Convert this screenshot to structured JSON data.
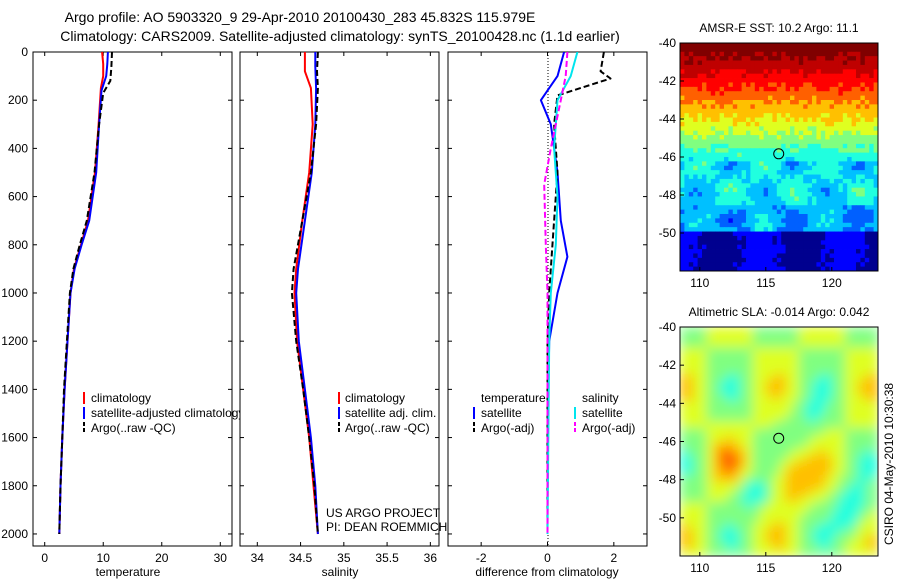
{
  "header": {
    "title_line1": "Argo profile: AO 5903320_9 29-Apr-2010 20100430_283 45.832S 115.979E",
    "title_line2": "Climatology: CARS2009. Satellite-adjusted climatology: synTS_20100428.nc (1.1d earlier)"
  },
  "stamp": "CSIRO 04-May-2010 10:30:38",
  "credits": {
    "line1": "US ARGO PROJECT",
    "line2": "PI: DEAN ROEMMICH"
  },
  "colors": {
    "climatology": "#ff0000",
    "satellite": "#0000ff",
    "argo": "#000000",
    "salinity_satellite": "#00e5ee",
    "salinity_argo": "#ff00ff"
  },
  "chart_data": [
    {
      "type": "line",
      "id": "temperature",
      "xlabel": "temperature",
      "ylabel": "",
      "xlim": [
        -2,
        32
      ],
      "ylim": [
        2050,
        0
      ],
      "xticks": [
        0,
        10,
        20,
        30
      ],
      "yticks": [
        0,
        200,
        400,
        600,
        800,
        1000,
        1200,
        1400,
        1600,
        1800,
        2000
      ],
      "legend": [
        "climatology",
        "satellite-adjusted climatology",
        "Argo(..raw -QC)"
      ],
      "series": [
        {
          "name": "climatology",
          "color": "#ff0000",
          "dash": false,
          "points": [
            [
              9.8,
              0
            ],
            [
              10.0,
              50
            ],
            [
              10.0,
              100
            ],
            [
              9.6,
              150
            ],
            [
              9.2,
              300
            ],
            [
              8.6,
              500
            ],
            [
              7.4,
              700
            ],
            [
              6.2,
              800
            ],
            [
              5.0,
              900
            ],
            [
              4.4,
              1000
            ],
            [
              3.9,
              1200
            ],
            [
              3.4,
              1400
            ],
            [
              3.0,
              1600
            ],
            [
              2.7,
              1800
            ],
            [
              2.5,
              2000
            ]
          ]
        },
        {
          "name": "satellite-adjusted climatology",
          "color": "#0000ff",
          "dash": false,
          "points": [
            [
              10.8,
              0
            ],
            [
              10.7,
              50
            ],
            [
              10.5,
              100
            ],
            [
              9.7,
              160
            ],
            [
              9.3,
              300
            ],
            [
              8.8,
              500
            ],
            [
              7.6,
              700
            ],
            [
              6.3,
              800
            ],
            [
              5.1,
              900
            ],
            [
              4.4,
              1000
            ],
            [
              3.9,
              1200
            ],
            [
              3.4,
              1400
            ],
            [
              3.0,
              1600
            ],
            [
              2.7,
              1800
            ],
            [
              2.5,
              2000
            ]
          ]
        },
        {
          "name": "Argo(..raw -QC)",
          "color": "#000000",
          "dash": true,
          "points": [
            [
              11.5,
              0
            ],
            [
              11.4,
              60
            ],
            [
              11.2,
              120
            ],
            [
              10.0,
              170
            ],
            [
              9.3,
              300
            ],
            [
              8.5,
              500
            ],
            [
              7.2,
              700
            ],
            [
              6.0,
              800
            ],
            [
              4.9,
              900
            ],
            [
              4.3,
              1000
            ],
            [
              3.8,
              1200
            ],
            [
              3.3,
              1400
            ],
            [
              3.0,
              1600
            ],
            [
              2.7,
              1800
            ],
            [
              2.5,
              2000
            ]
          ]
        }
      ]
    },
    {
      "type": "line",
      "id": "salinity",
      "xlabel": "salinity",
      "ylabel": "",
      "xlim": [
        33.8,
        36.1
      ],
      "ylim": [
        2050,
        0
      ],
      "xticks": [
        34,
        34.5,
        35,
        35.5,
        36
      ],
      "yticks": [
        0,
        200,
        400,
        600,
        800,
        1000,
        1200,
        1400,
        1600,
        1800,
        2000
      ],
      "legend": [
        "climatology",
        "satellite adj. clim.",
        "Argo(..raw -QC)"
      ],
      "series": [
        {
          "name": "climatology",
          "color": "#ff0000",
          "dash": false,
          "points": [
            [
              34.55,
              0
            ],
            [
              34.55,
              80
            ],
            [
              34.62,
              150
            ],
            [
              34.64,
              300
            ],
            [
              34.6,
              500
            ],
            [
              34.52,
              700
            ],
            [
              34.45,
              900
            ],
            [
              34.43,
              1000
            ],
            [
              34.46,
              1200
            ],
            [
              34.53,
              1400
            ],
            [
              34.6,
              1600
            ],
            [
              34.65,
              1800
            ],
            [
              34.7,
              2000
            ]
          ]
        },
        {
          "name": "satellite adj. clim.",
          "color": "#0000ff",
          "dash": false,
          "points": [
            [
              34.67,
              0
            ],
            [
              34.67,
              60
            ],
            [
              34.68,
              150
            ],
            [
              34.67,
              300
            ],
            [
              34.63,
              500
            ],
            [
              34.55,
              700
            ],
            [
              34.47,
              900
            ],
            [
              34.45,
              1000
            ],
            [
              34.48,
              1200
            ],
            [
              34.55,
              1400
            ],
            [
              34.62,
              1600
            ],
            [
              34.67,
              1800
            ],
            [
              34.7,
              2000
            ]
          ]
        },
        {
          "name": "Argo(..raw -QC)",
          "color": "#000000",
          "dash": true,
          "points": [
            [
              34.7,
              0
            ],
            [
              34.69,
              80
            ],
            [
              34.7,
              150
            ],
            [
              34.68,
              300
            ],
            [
              34.62,
              500
            ],
            [
              34.52,
              700
            ],
            [
              34.42,
              900
            ],
            [
              34.4,
              1000
            ],
            [
              34.45,
              1200
            ],
            [
              34.53,
              1400
            ],
            [
              34.6,
              1600
            ],
            [
              34.66,
              1800
            ],
            [
              34.7,
              2000
            ]
          ]
        }
      ]
    },
    {
      "type": "line",
      "id": "difference",
      "xlabel": "difference from climatology",
      "ylabel": "",
      "xlim": [
        -3,
        3
      ],
      "ylim": [
        2050,
        0
      ],
      "xticks": [
        -2,
        0,
        2
      ],
      "yticks": [
        0,
        200,
        400,
        600,
        800,
        1000,
        1200,
        1400,
        1600,
        1800,
        2000
      ],
      "legend_titles": [
        "temperature",
        "salinity"
      ],
      "legend": [
        "satellite",
        "Argo(-adj)",
        "satellite",
        "Argo(-adj)"
      ],
      "series": [
        {
          "name": "temperature satellite",
          "color": "#0000ff",
          "dash": false,
          "points": [
            [
              0.5,
              0
            ],
            [
              0.3,
              100
            ],
            [
              0.05,
              150
            ],
            [
              -0.2,
              200
            ],
            [
              0.1,
              300
            ],
            [
              0.3,
              500
            ],
            [
              0.4,
              700
            ],
            [
              0.6,
              850
            ],
            [
              0.3,
              1000
            ],
            [
              0.05,
              1200
            ],
            [
              0.0,
              1600
            ],
            [
              0.0,
              2000
            ]
          ]
        },
        {
          "name": "temperature Argo(-adj)",
          "color": "#000000",
          "dash": true,
          "points": [
            [
              1.7,
              0
            ],
            [
              1.6,
              80
            ],
            [
              1.9,
              110
            ],
            [
              0.3,
              180
            ],
            [
              0.2,
              300
            ],
            [
              0.3,
              500
            ],
            [
              0.2,
              700
            ],
            [
              0.1,
              900
            ],
            [
              0.05,
              1000
            ],
            [
              0.0,
              1200
            ],
            [
              0.0,
              2000
            ]
          ]
        },
        {
          "name": "salinity satellite",
          "color": "#00e5ee",
          "dash": false,
          "points": [
            [
              0.9,
              0
            ],
            [
              0.7,
              100
            ],
            [
              0.3,
              200
            ],
            [
              0.2,
              400
            ],
            [
              0.3,
              600
            ],
            [
              0.25,
              800
            ],
            [
              0.1,
              1000
            ],
            [
              0.05,
              1200
            ],
            [
              0.0,
              2000
            ]
          ]
        },
        {
          "name": "salinity Argo(-adj)",
          "color": "#ff00ff",
          "dash": true,
          "points": [
            [
              0.6,
              0
            ],
            [
              0.55,
              100
            ],
            [
              0.4,
              200
            ],
            [
              0.1,
              400
            ],
            [
              -0.1,
              550
            ],
            [
              -0.05,
              800
            ],
            [
              0.0,
              1000
            ],
            [
              0.0,
              2000
            ]
          ]
        }
      ]
    },
    {
      "type": "heatmap",
      "id": "sst-map",
      "title": "AMSR-E SST: 10.2 Argo: 11.1",
      "xlim": [
        108.5,
        123.5
      ],
      "ylim": [
        -52,
        -40
      ],
      "xticks": [
        110,
        115,
        120
      ],
      "yticks": [
        -40,
        -42,
        -44,
        -46,
        -48,
        -50
      ],
      "marker": [
        115.979,
        -45.832
      ]
    },
    {
      "type": "heatmap",
      "id": "sla-map",
      "title": "Altimetric SLA: -0.014 Argo: 0.042",
      "xlim": [
        108.5,
        123.5
      ],
      "ylim": [
        -52,
        -40
      ],
      "xticks": [
        110,
        115,
        120
      ],
      "yticks": [
        -40,
        -42,
        -44,
        -46,
        -48,
        -50
      ],
      "marker": [
        115.979,
        -45.832
      ]
    }
  ]
}
